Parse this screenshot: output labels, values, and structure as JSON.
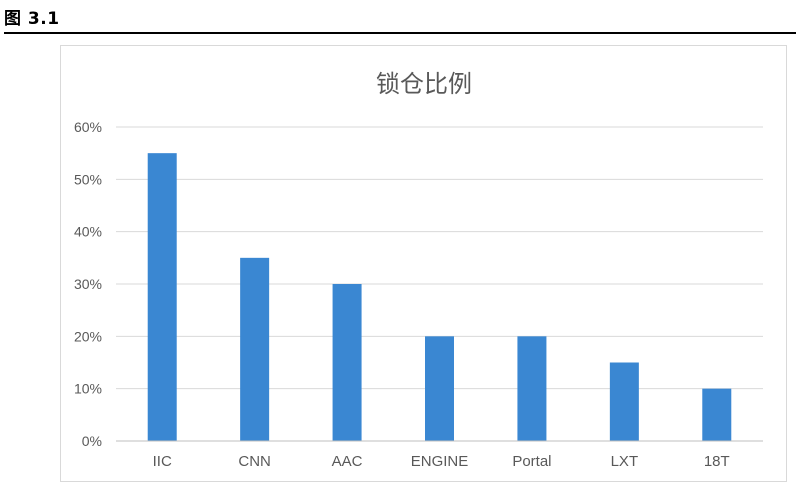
{
  "figure": {
    "label": "图 3.1"
  },
  "chart_data": {
    "type": "bar",
    "title": "锁仓比例",
    "xlabel": "",
    "ylabel": "",
    "categories": [
      "IIC",
      "CNN",
      "AAC",
      "ENGINE",
      "Portal",
      "LXT",
      "18T"
    ],
    "values": [
      55,
      35,
      30,
      20,
      20,
      15,
      10
    ],
    "value_format": "percent",
    "yticks": [
      "0%",
      "10%",
      "20%",
      "30%",
      "40%",
      "50%",
      "60%"
    ],
    "ylim": [
      0,
      60
    ],
    "grid": true,
    "legend": "none",
    "bar_color": "#3a87d2",
    "grid_color": "#d9d9d9",
    "axis_color": "#bfbfbf",
    "text_color": "#595959"
  }
}
